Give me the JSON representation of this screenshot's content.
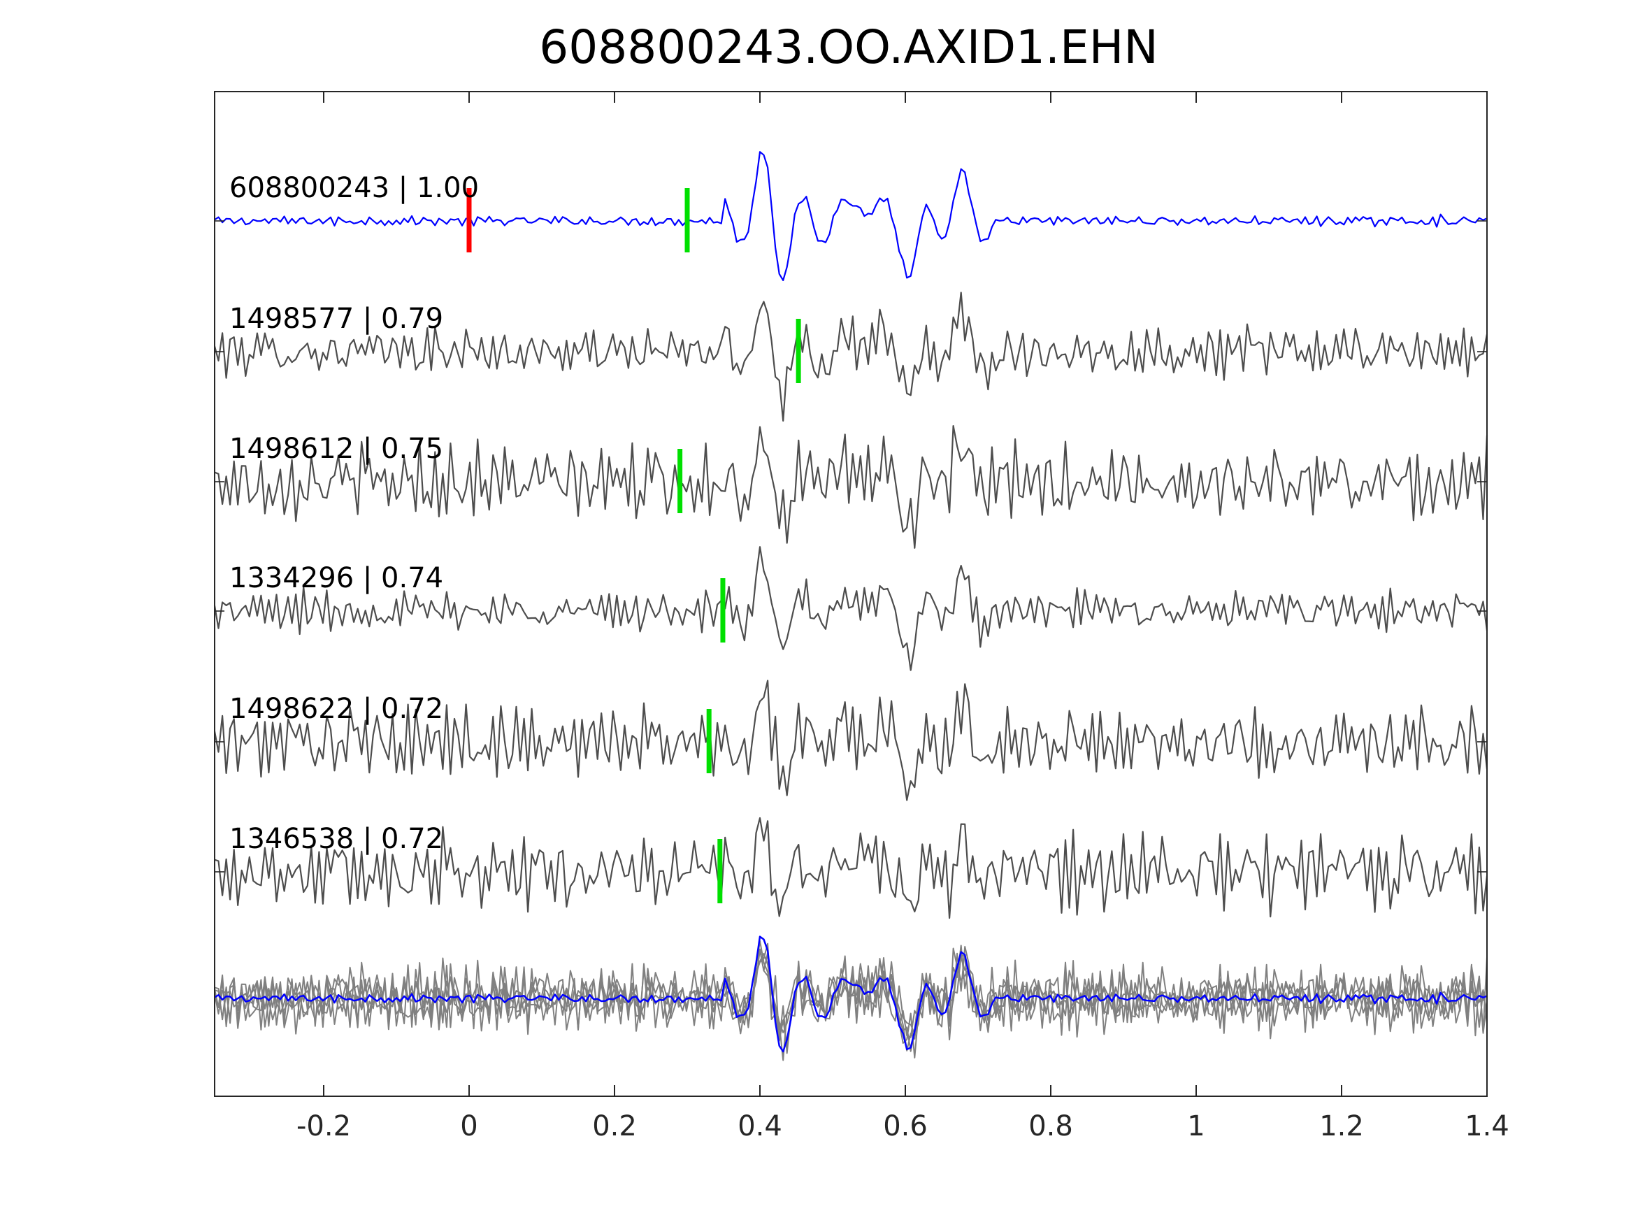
{
  "chart_data": {
    "type": "line",
    "title": "608800243.OO.AXID1.EHN",
    "xlabel": "",
    "ylabel": "",
    "xlim": [
      -0.35,
      1.4
    ],
    "x_ticks": [
      -0.2,
      0,
      0.2,
      0.4,
      0.6,
      0.8,
      1,
      1.2,
      1.4
    ],
    "x_tick_labels": [
      "-0.2",
      "0",
      "0.2",
      "0.4",
      "0.6",
      "0.8",
      "1",
      "1.2",
      "1.4"
    ],
    "y_ticks_shown": false,
    "grid": false,
    "legend": "none",
    "colors": {
      "template": "#0000ff",
      "match": "#4d4d4d",
      "stack": "#808080",
      "origin_marker": "#ff0000",
      "pick_marker": "#00e000"
    },
    "series": [
      {
        "name": "608800243 | 1.00",
        "role": "template",
        "pick_time": 0.3,
        "origin_time": 0.0
      },
      {
        "name": "1498577 | 0.79",
        "role": "match",
        "pick_time": 0.453
      },
      {
        "name": "1498612 | 0.75",
        "role": "match",
        "pick_time": 0.29
      },
      {
        "name": "1334296 | 0.74",
        "role": "match",
        "pick_time": 0.349
      },
      {
        "name": "1498622 | 0.72",
        "role": "match",
        "pick_time": 0.33
      },
      {
        "name": "1346538 | 0.72",
        "role": "match",
        "pick_time": 0.345
      }
    ],
    "waveform_features": {
      "arrivals": [
        {
          "t": 0.405,
          "amp": 0.75
        },
        {
          "t": 0.43,
          "amp": -0.55
        },
        {
          "t": 0.54,
          "amp": 0.5
        },
        {
          "t": 0.61,
          "amp": -0.7
        },
        {
          "t": 0.675,
          "amp": 0.45
        }
      ]
    }
  }
}
